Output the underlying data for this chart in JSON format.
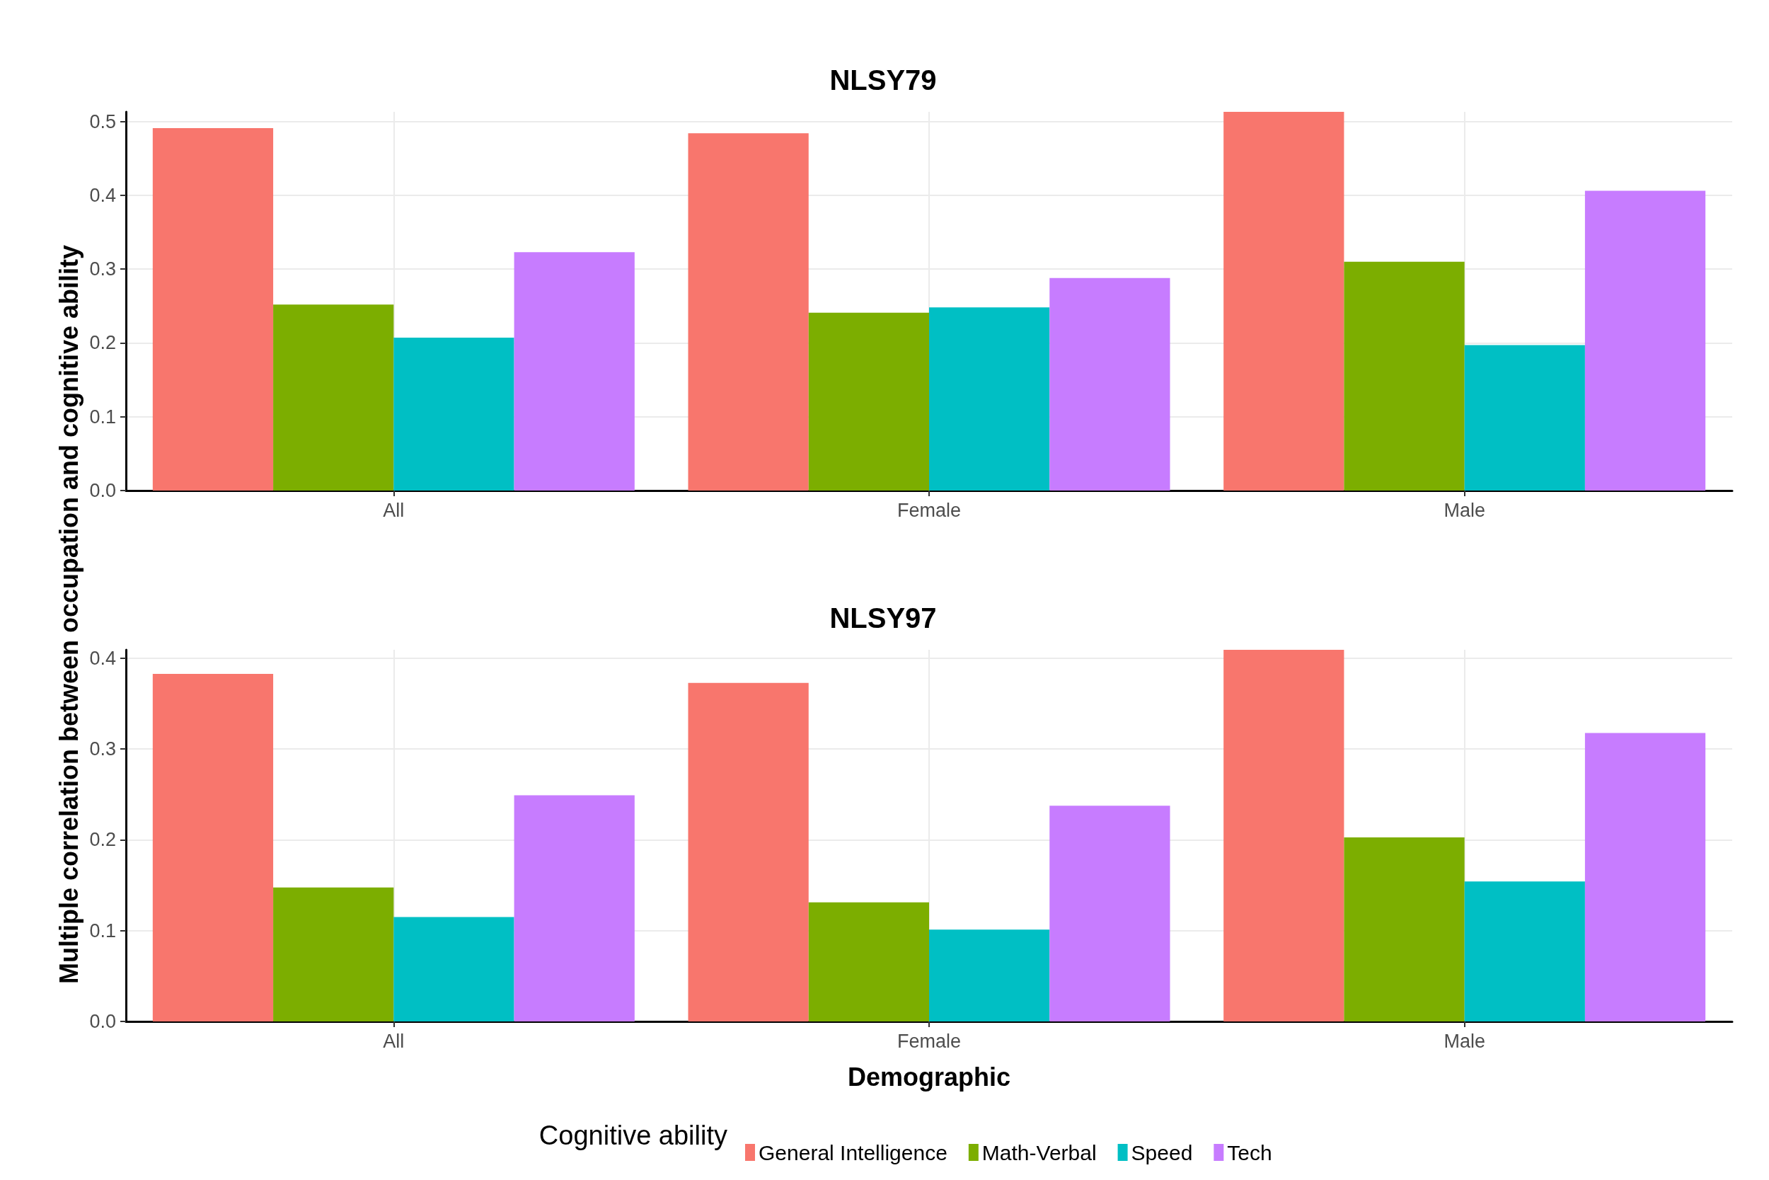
{
  "chart_data": [
    {
      "type": "bar",
      "title": "NLSY79",
      "ylabel": "Multiple correlation between occupation and cognitive ability",
      "categories": [
        "All",
        "Female",
        "Male"
      ],
      "ylim": [
        0,
        0.513
      ],
      "yticks": [
        {
          "value": 0,
          "label": "0.0"
        },
        0.1,
        0.2,
        0.3,
        0.4,
        0.5
      ],
      "grid": true,
      "legend": false,
      "series": [
        {
          "color": "#f8766d",
          "values": [
            0.491,
            0.484,
            0.513
          ]
        },
        {
          "color": "#7cae00",
          "values": [
            0.252,
            0.241,
            0.31
          ]
        },
        {
          "color": "#00bfc4",
          "values": [
            0.207,
            0.248,
            0.197
          ]
        },
        {
          "color": "#c77cff",
          "values": [
            0.323,
            0.288,
            0.406
          ]
        }
      ]
    },
    {
      "type": "bar",
      "title": "NLSY97",
      "xlabel": "Demographic",
      "legend_title": "Cognitive ability",
      "categories": [
        "All",
        "Female",
        "Male"
      ],
      "ylim": [
        0,
        0.409
      ],
      "yticks": [
        {
          "value": 0,
          "label": "0.0"
        },
        0.1,
        0.2,
        0.3,
        0.4
      ],
      "grid": true,
      "legend": "bottom",
      "series": [
        {
          "name": "General Intelligence",
          "color": "#f8766d",
          "values": [
            0.3825,
            0.3725,
            0.409
          ]
        },
        {
          "name": "Math-Verbal",
          "color": "#7cae00",
          "values": [
            0.1475,
            0.131,
            0.2025
          ]
        },
        {
          "name": "Speed",
          "color": "#00bfc4",
          "values": [
            0.115,
            0.101,
            0.154
          ]
        },
        {
          "name": "Tech",
          "color": "#c77cff",
          "values": [
            0.249,
            0.2375,
            0.3175
          ]
        }
      ]
    }
  ]
}
